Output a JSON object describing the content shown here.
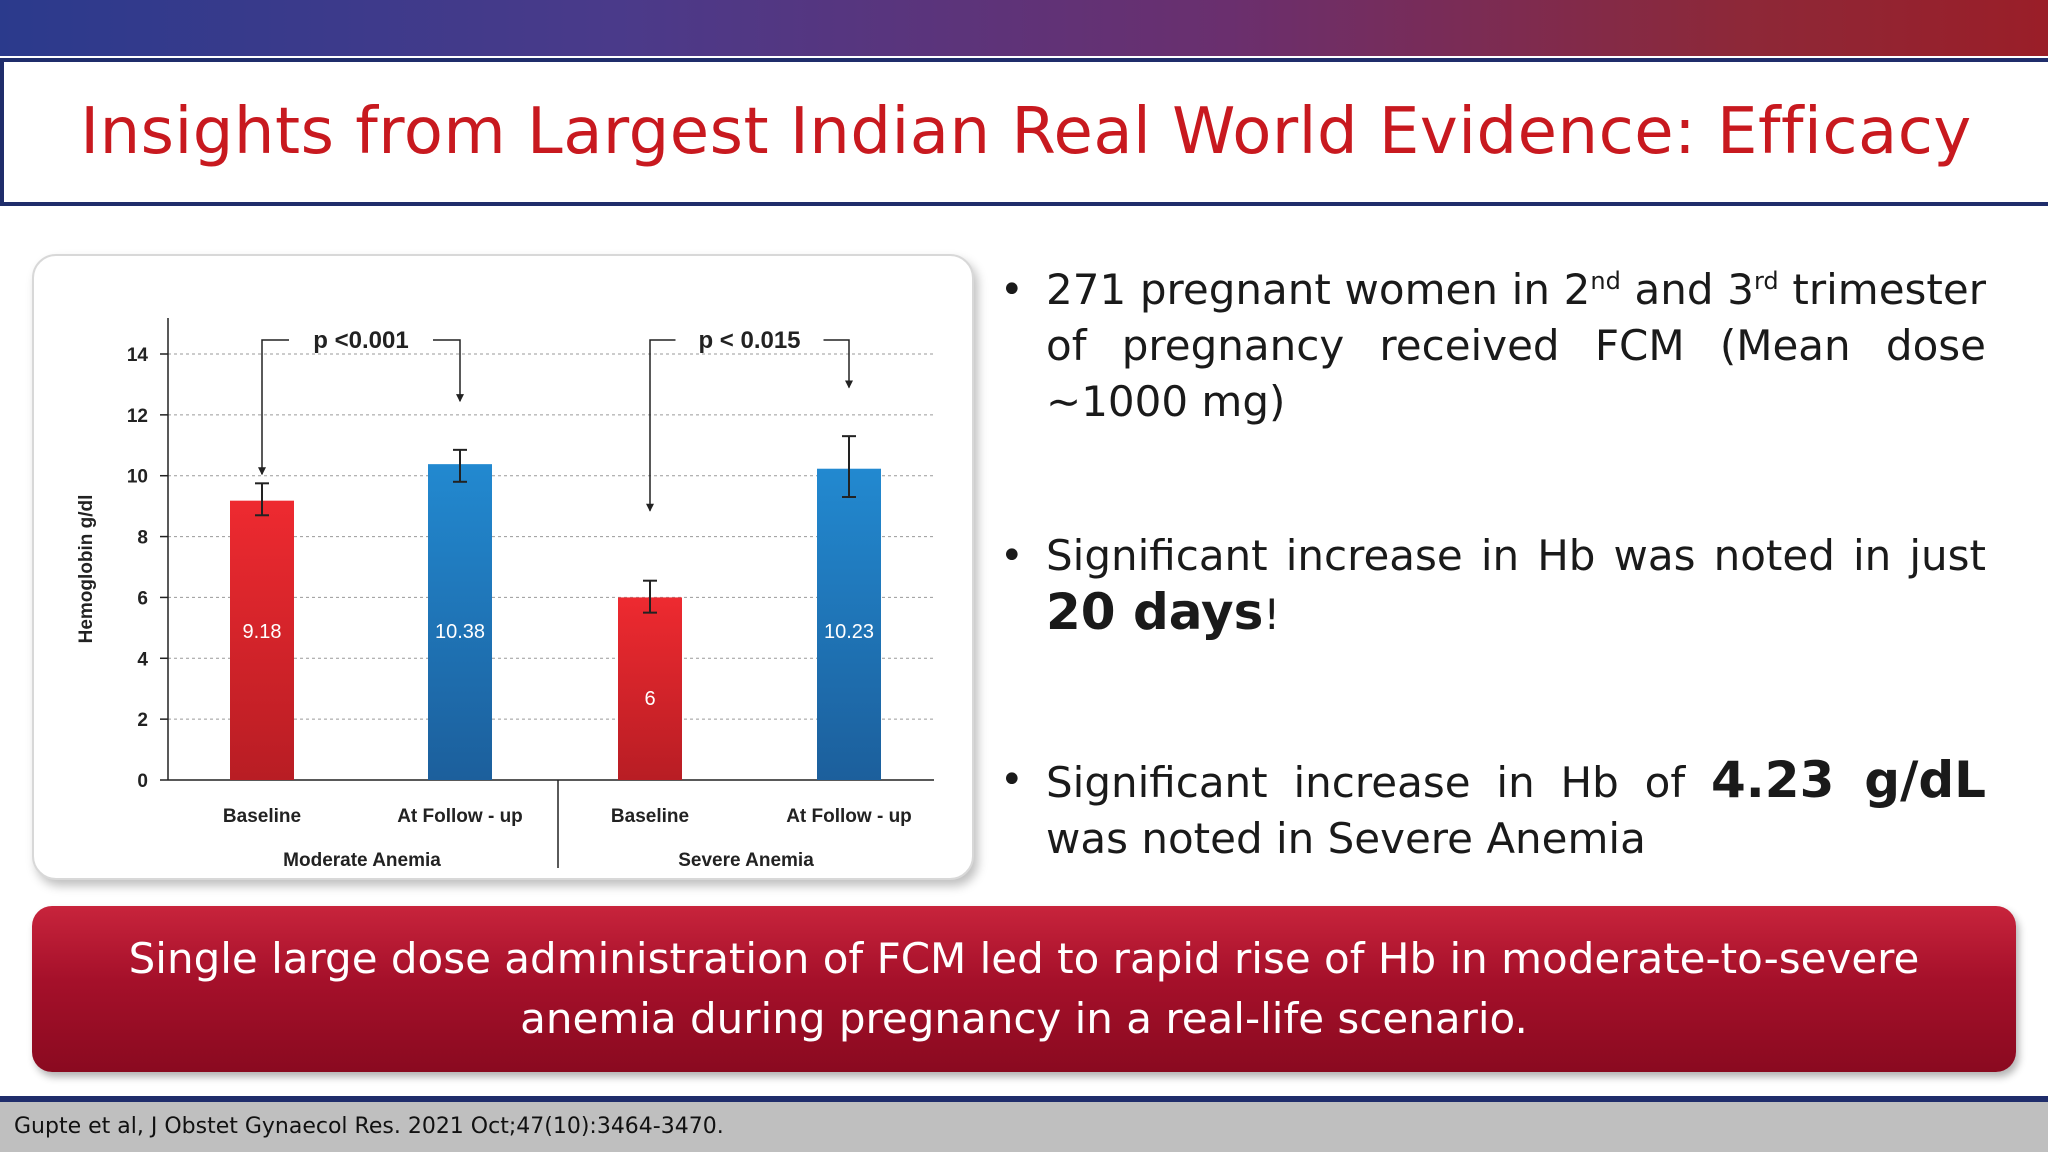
{
  "title": "Insights from Largest Indian Real World Evidence: Efficacy",
  "chart_data": {
    "type": "bar",
    "title": "",
    "ylabel": "Hemoglobin g/dl",
    "ylim": [
      0,
      14
    ],
    "yticks": [
      0,
      2,
      4,
      6,
      8,
      10,
      12,
      14
    ],
    "grid": true,
    "groups": [
      {
        "name": "Moderate Anemia",
        "p_label": "p <0.001",
        "bars": [
          {
            "category": "Baseline",
            "value": 9.18,
            "label": "9.18",
            "color": "#e3282e",
            "err_low": 8.7,
            "err_high": 9.75
          },
          {
            "category": "At Follow - up",
            "value": 10.38,
            "label": "10.38",
            "color": "#1f78c0",
            "err_low": 9.8,
            "err_high": 10.85
          }
        ]
      },
      {
        "name": "Severe Anemia",
        "p_label": "p < 0.015",
        "bars": [
          {
            "category": "Baseline",
            "value": 6,
            "label": "6",
            "color": "#e3282e",
            "err_low": 5.5,
            "err_high": 6.55
          },
          {
            "category": "At Follow - up",
            "value": 10.23,
            "label": "10.23",
            "color": "#1f78c0",
            "err_low": 9.3,
            "err_high": 11.3
          }
        ]
      }
    ]
  },
  "bullets": {
    "b1_pre": "271 pregnant women in 2",
    "b1_sup1": "nd",
    "b1_mid": " and 3",
    "b1_sup2": "rd",
    "b1_post": " trimester of pregnancy received FCM (Mean dose ∼1000 mg)",
    "b2_pre": "Significant increase in Hb was noted in just ",
    "b2_bold": "20 days",
    "b2_post": "!",
    "b3_pre": "Significant increase in Hb of ",
    "b3_bold": "4.23 g/dL",
    "b3_post": " was noted in Severe Anemia",
    "bullet_char": "•"
  },
  "banner": "Single large dose administration of FCM led to rapid rise of Hb in moderate-to-severe anemia during pregnancy in a real-life scenario.",
  "footer": "Gupte et al, J Obstet Gynaecol Res. 2021 Oct;47(10):3464-3470."
}
